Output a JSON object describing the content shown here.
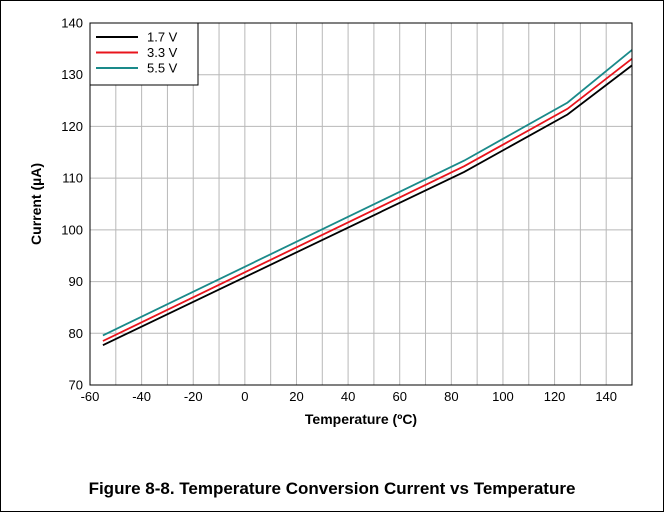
{
  "chart_data": {
    "type": "line",
    "title": "",
    "xlabel": "Temperature (ºC)",
    "ylabel": "Current (µA)",
    "xlim": [
      -60,
      150
    ],
    "ylim": [
      70,
      140
    ],
    "x_ticks": [
      -60,
      -40,
      -20,
      0,
      20,
      40,
      60,
      80,
      100,
      120,
      140
    ],
    "y_ticks": [
      70,
      80,
      90,
      100,
      110,
      120,
      130,
      140
    ],
    "grid": true,
    "legend_position": "top-left",
    "series": [
      {
        "name": "1.7 V",
        "color": "#000000",
        "x": [
          -55,
          85,
          125,
          150
        ],
        "y": [
          77.7,
          111.2,
          122.3,
          131.8
        ]
      },
      {
        "name": "3.3 V",
        "color": "#e8141c",
        "x": [
          -55,
          85,
          125,
          150
        ],
        "y": [
          78.5,
          112.3,
          123.4,
          133.1
        ]
      },
      {
        "name": "5.5 V",
        "color": "#1a8a8a",
        "x": [
          -55,
          85,
          125,
          150
        ],
        "y": [
          79.6,
          113.4,
          124.6,
          134.8
        ]
      }
    ]
  },
  "figure_caption": "Figure 8-8. Temperature Conversion Current vs Temperature"
}
